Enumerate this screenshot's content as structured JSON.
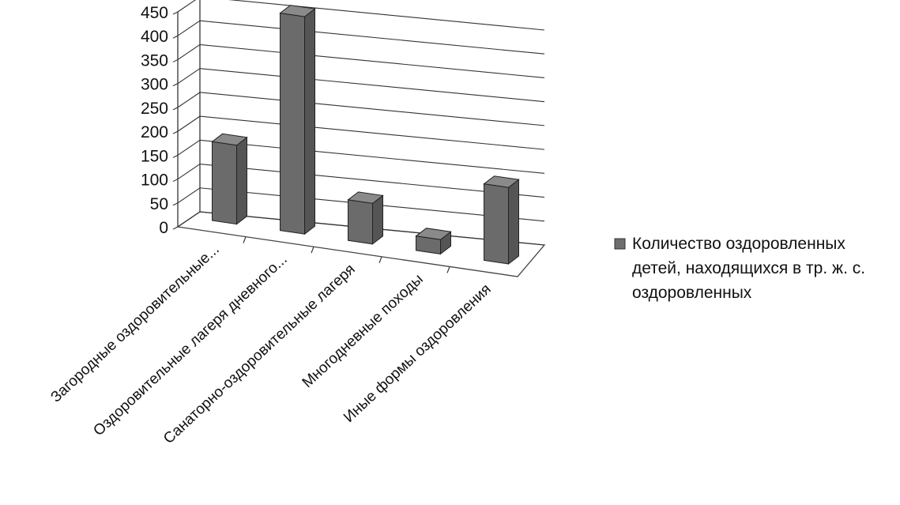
{
  "chart_data": {
    "type": "bar",
    "subtype": "3d-column",
    "title": "",
    "xlabel": "",
    "ylabel": "",
    "categories": [
      "Загородные оздоровительные...",
      "Оздоровительные лагеря дневного...",
      "Санаторно-оздоровительные лагеря",
      "Многодневные походы",
      "Иные формы оздоровления"
    ],
    "series": [
      {
        "name": "Количество оздоровленных детей, находящихся в тр. ж. с. оздоровленных",
        "name_lines": [
          "Количество оздоровленных",
          "детей, находящихся в тр. ж. с.",
          "оздоровленных"
        ],
        "values": [
          165,
          455,
          85,
          30,
          160
        ],
        "color": "#6e6e6e"
      }
    ],
    "ylim": [
      0,
      450
    ],
    "yticks": [
      0,
      50,
      100,
      150,
      200,
      250,
      300,
      350,
      400,
      450
    ],
    "grid": true,
    "legend_position": "right"
  }
}
